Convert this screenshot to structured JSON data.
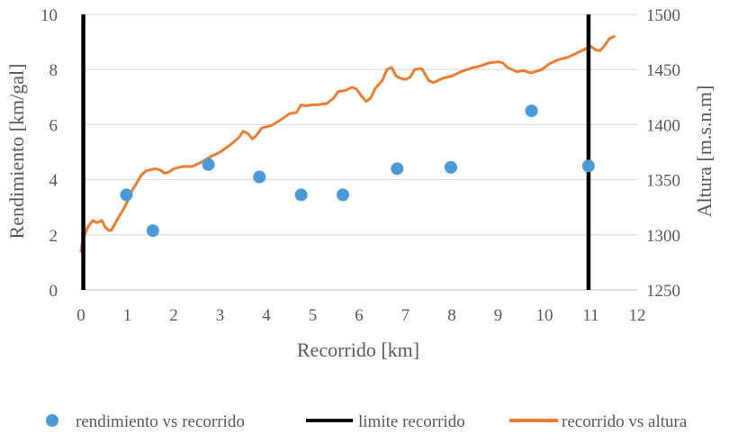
{
  "chart_data": {
    "type": "scatter",
    "title": "",
    "xlabel": "Recorrido [km]",
    "ylabel_left": "Rendimiento [km/gal]",
    "ylabel_right": "Altura [m.s.n.m]",
    "xlim": [
      0,
      12
    ],
    "ylim_left": [
      0,
      10
    ],
    "ylim_right": [
      1250,
      1500
    ],
    "x_ticks": [
      "0",
      "1",
      "2",
      "3",
      "4",
      "5",
      "6",
      "7",
      "8",
      "9",
      "10",
      "11",
      "12"
    ],
    "y_left_ticks": [
      "0",
      "2",
      "4",
      "6",
      "8",
      "10"
    ],
    "y_right_ticks": [
      "1250",
      "1300",
      "1350",
      "1400",
      "1450",
      "1500"
    ],
    "grid": "horizontal",
    "legend_position": "bottom",
    "series": [
      {
        "name": "rendimiento vs recorrido",
        "type": "scatter",
        "axis": "left",
        "color": "#4a9ad9",
        "points": [
          [
            0.98,
            3.45
          ],
          [
            1.55,
            2.15
          ],
          [
            2.75,
            4.55
          ],
          [
            3.85,
            4.1
          ],
          [
            4.75,
            3.45
          ],
          [
            5.65,
            3.45
          ],
          [
            6.82,
            4.4
          ],
          [
            7.98,
            4.45
          ],
          [
            9.72,
            6.5
          ],
          [
            10.95,
            4.5
          ]
        ]
      },
      {
        "name": "limite recorrido",
        "type": "vline",
        "color": "#000000",
        "x": [
          0.05,
          10.95
        ]
      },
      {
        "name": "recorrido vs altura",
        "type": "line",
        "axis": "right",
        "color": "#ed7d31",
        "points": [
          [
            0.0,
            1285
          ],
          [
            0.03,
            1293
          ],
          [
            0.08,
            1300
          ],
          [
            0.15,
            1307
          ],
          [
            0.25,
            1313
          ],
          [
            0.35,
            1311
          ],
          [
            0.45,
            1313
          ],
          [
            0.52,
            1307
          ],
          [
            0.6,
            1304
          ],
          [
            0.65,
            1304
          ],
          [
            0.72,
            1309
          ],
          [
            0.8,
            1315
          ],
          [
            0.9,
            1322
          ],
          [
            1.0,
            1330
          ],
          [
            1.1,
            1340
          ],
          [
            1.2,
            1347
          ],
          [
            1.3,
            1354
          ],
          [
            1.4,
            1358
          ],
          [
            1.5,
            1359
          ],
          [
            1.6,
            1360
          ],
          [
            1.7,
            1359
          ],
          [
            1.8,
            1356
          ],
          [
            1.9,
            1357
          ],
          [
            2.0,
            1360
          ],
          [
            2.2,
            1362
          ],
          [
            2.4,
            1362
          ],
          [
            2.6,
            1366
          ],
          [
            2.8,
            1371
          ],
          [
            3.0,
            1375
          ],
          [
            3.2,
            1381
          ],
          [
            3.4,
            1388
          ],
          [
            3.5,
            1394
          ],
          [
            3.6,
            1392
          ],
          [
            3.7,
            1387
          ],
          [
            3.8,
            1391
          ],
          [
            3.9,
            1397
          ],
          [
            4.1,
            1399
          ],
          [
            4.3,
            1404
          ],
          [
            4.5,
            1410
          ],
          [
            4.65,
            1411
          ],
          [
            4.75,
            1418
          ],
          [
            4.85,
            1417
          ],
          [
            5.0,
            1418
          ],
          [
            5.1,
            1418
          ],
          [
            5.3,
            1419
          ],
          [
            5.45,
            1424
          ],
          [
            5.55,
            1430
          ],
          [
            5.7,
            1431
          ],
          [
            5.85,
            1434
          ],
          [
            5.95,
            1432
          ],
          [
            6.05,
            1426
          ],
          [
            6.15,
            1421
          ],
          [
            6.25,
            1424
          ],
          [
            6.35,
            1433
          ],
          [
            6.5,
            1440
          ],
          [
            6.6,
            1450
          ],
          [
            6.7,
            1452
          ],
          [
            6.8,
            1444
          ],
          [
            6.9,
            1442
          ],
          [
            7.0,
            1441
          ],
          [
            7.1,
            1443
          ],
          [
            7.2,
            1450
          ],
          [
            7.35,
            1451
          ],
          [
            7.5,
            1440
          ],
          [
            7.6,
            1438
          ],
          [
            7.8,
            1442
          ],
          [
            8.0,
            1444
          ],
          [
            8.2,
            1448
          ],
          [
            8.4,
            1451
          ],
          [
            8.6,
            1453
          ],
          [
            8.8,
            1456
          ],
          [
            9.0,
            1457
          ],
          [
            9.1,
            1456
          ],
          [
            9.2,
            1452
          ],
          [
            9.4,
            1448
          ],
          [
            9.55,
            1449
          ],
          [
            9.7,
            1447
          ],
          [
            9.8,
            1448
          ],
          [
            9.95,
            1450
          ],
          [
            10.1,
            1455
          ],
          [
            10.3,
            1459
          ],
          [
            10.5,
            1461
          ],
          [
            10.65,
            1464
          ],
          [
            10.8,
            1467
          ],
          [
            11.0,
            1471
          ],
          [
            11.1,
            1468
          ],
          [
            11.2,
            1467
          ],
          [
            11.3,
            1472
          ],
          [
            11.4,
            1478
          ],
          [
            11.5,
            1480
          ]
        ]
      }
    ]
  }
}
